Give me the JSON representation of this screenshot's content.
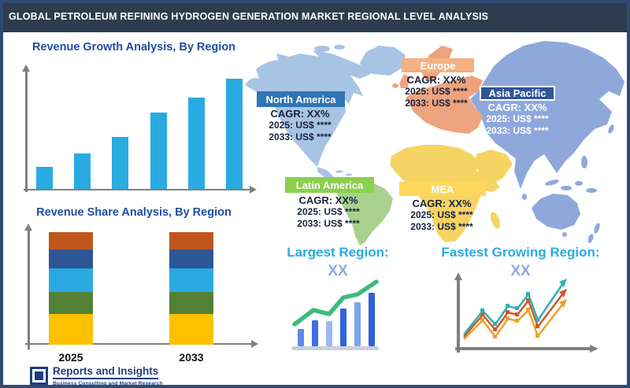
{
  "header": {
    "title": "GLOBAL PETROLEUM REFINING HYDROGEN GENERATION MARKET REGIONAL LEVEL ANALYSIS"
  },
  "charts": {
    "growth_title": "Revenue Growth Analysis, By Region",
    "share_title": "Revenue Share Analysis, By Region"
  },
  "chart_data": [
    {
      "type": "bar",
      "title": "Revenue Growth Analysis, By Region",
      "categories": [
        "",
        "",
        "",
        "",
        "",
        ""
      ],
      "values": [
        20,
        32,
        47,
        69,
        83,
        100
      ],
      "unit": "relative (unlabeled axes, steadily increasing)",
      "bar_color": "#29abe2",
      "grid": false
    },
    {
      "type": "stacked-bar",
      "title": "Revenue Share Analysis, By Region",
      "categories": [
        "2025",
        "2033"
      ],
      "series": [
        {
          "name": "segment-orange",
          "color": "#c0561b",
          "values": [
            15,
            15
          ]
        },
        {
          "name": "segment-dark-blue",
          "color": "#2e5696",
          "values": [
            17,
            17
          ]
        },
        {
          "name": "segment-cyan",
          "color": "#29abe2",
          "values": [
            21,
            21
          ]
        },
        {
          "name": "segment-green",
          "color": "#538135",
          "values": [
            20,
            20
          ]
        },
        {
          "name": "segment-yellow",
          "color": "#ffc000",
          "values": [
            27,
            27
          ]
        }
      ],
      "unit": "percent share (segments top to bottom)",
      "grid": false
    }
  ],
  "map": {
    "regions": [
      {
        "name": "North America",
        "cagr": "CAGR: XX%",
        "y2025": "2025: US$ ****",
        "y2033": "2033: US$ ****",
        "label_bg": "#2e75b6"
      },
      {
        "name": "Europe",
        "cagr": "CAGR: XX%",
        "y2025": "2025: US$ ****",
        "y2033": "2033: US$ ****",
        "label_bg": "#f4b183"
      },
      {
        "name": "Asia Pacific",
        "cagr": "CAGR: XX%",
        "y2025": "2025: US$ ****",
        "y2033": "2033: US$ ****",
        "label_bg": "#2f5597"
      },
      {
        "name": "Latin America",
        "cagr": "CAGR: XX%",
        "y2025": "2025: US$ ****",
        "y2033": "2033: US$ ****",
        "label_bg": "#8ccf4d"
      },
      {
        "name": "MEA",
        "cagr": "CAGR: XX%",
        "y2025": "2025: US$ ****",
        "y2033": "2033: US$ ****",
        "label_bg": "#fdd85c"
      }
    ]
  },
  "highlights": {
    "largest": {
      "label": "Largest Region:",
      "value": "XX"
    },
    "fastest": {
      "label": "Fastest Growing Region:",
      "value": "XX"
    }
  },
  "logo": {
    "name": "Reports and Insights",
    "tagline": "Business Consulting and Market Research"
  },
  "colors": {
    "header_bg": "#2e3c50",
    "border": "#2c4a72",
    "chart_title_blue": "#1f4ea1",
    "accent_cyan": "#29abe2",
    "highlight_value_blue": "#8ea9db",
    "continent_north_america": "#a8c4e4",
    "continent_south_america": "#a9d18e",
    "continent_europe": "#eda47e",
    "continent_africa_mea": "#f6d464",
    "continent_asia_australia": "#8fa8dc"
  }
}
